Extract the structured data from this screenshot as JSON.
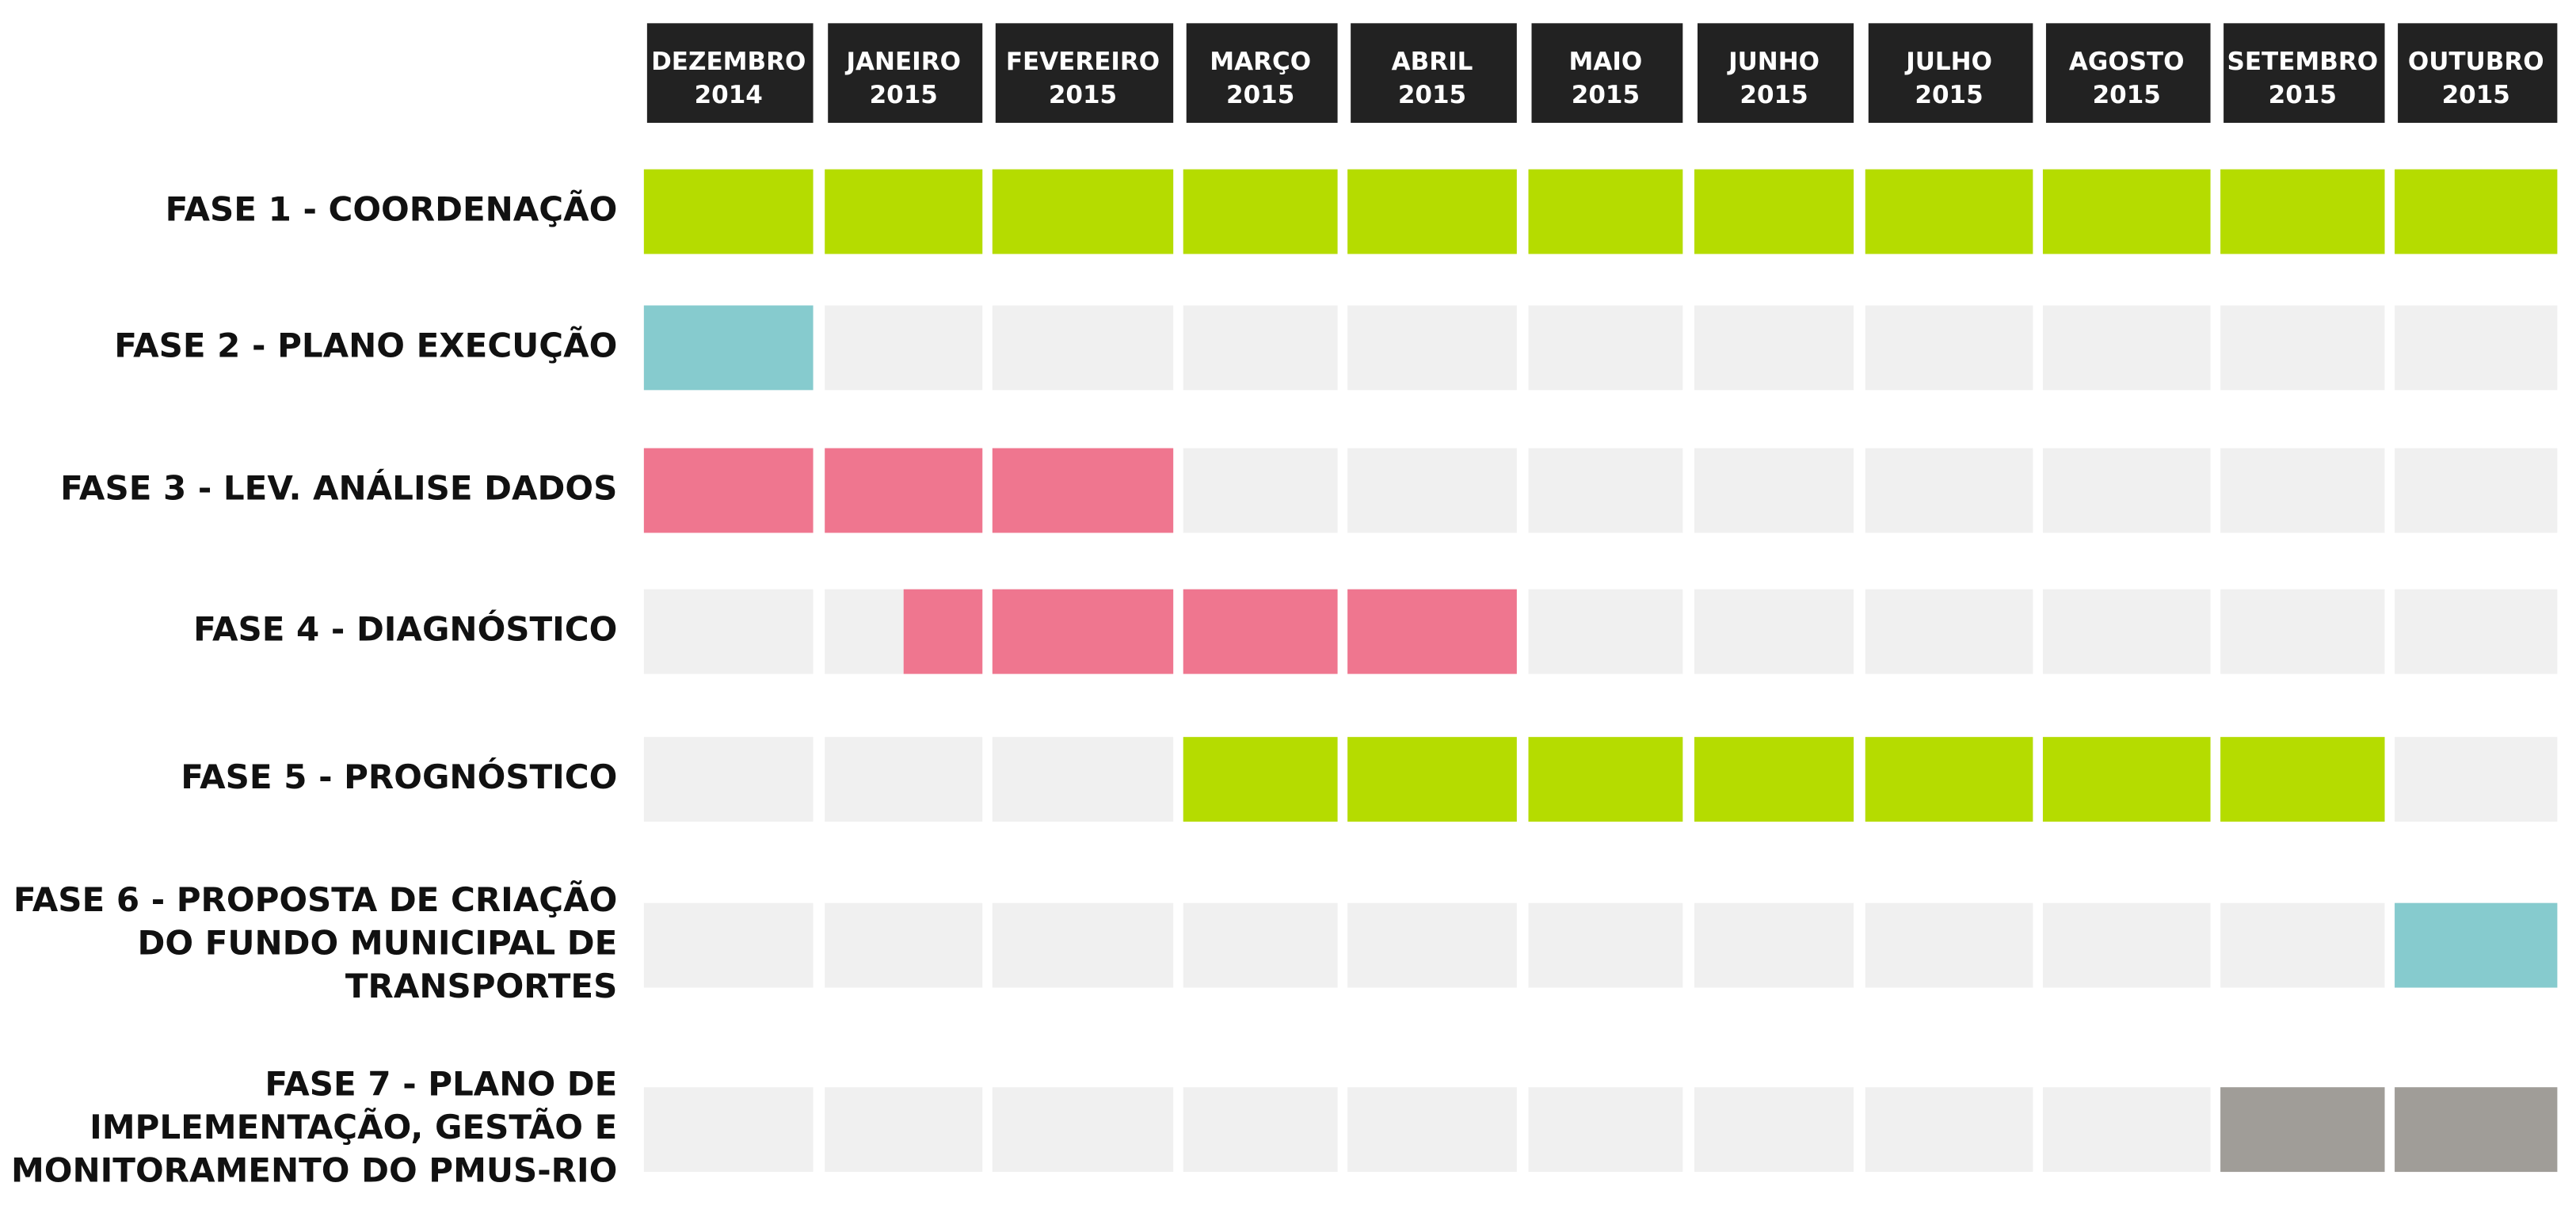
{
  "months": [
    {
      "name": "DEZEMBRO",
      "year": "2014"
    },
    {
      "name": "JANEIRO",
      "year": "2015"
    },
    {
      "name": "FEVEREIRO",
      "year": "2015"
    },
    {
      "name": "MARÇO",
      "year": "2015"
    },
    {
      "name": "ABRIL",
      "year": "2015"
    },
    {
      "name": "MAIO",
      "year": "2015"
    },
    {
      "name": "JUNHO",
      "year": "2015"
    },
    {
      "name": "JULHO",
      "year": "2015"
    },
    {
      "name": "AGOSTO",
      "year": "2015"
    },
    {
      "name": "SETEMBRO",
      "year": "2015"
    },
    {
      "name": "OUTUBRO",
      "year": "2015"
    }
  ],
  "phases": [
    {
      "label": [
        "FASE 1 - COORDENAÇÃO"
      ],
      "start": 0,
      "end": 11,
      "color": "#b5dc00"
    },
    {
      "label": [
        "FASE 2 - PLANO EXECUÇÃO"
      ],
      "start": 0,
      "end": 1,
      "color": "#86cbce"
    },
    {
      "label": [
        "FASE 3 - LEV. ANÁLISE DADOS"
      ],
      "start": 0,
      "end": 3,
      "color": "#ef768f"
    },
    {
      "label": [
        "FASE 4 - DIAGNÓSTICO"
      ],
      "start": 1.5,
      "end": 5,
      "color": "#ef768f"
    },
    {
      "label": [
        "FASE 5 - PROGNÓSTICO"
      ],
      "start": 3,
      "end": 10,
      "color": "#b5dc00"
    },
    {
      "label": [
        "FASE 6 - PROPOSTA DE CRIAÇÃO",
        "DO FUNDO MUNICIPAL DE",
        "TRANSPORTES"
      ],
      "start": 10,
      "end": 11,
      "color": "#86cbce"
    },
    {
      "label": [
        "FASE 7 - PLANO DE",
        "IMPLEMENTAÇÃO, GESTÃO E",
        "MONITORAMENTO DO PMUS-RIO"
      ],
      "start": 9,
      "end": 11,
      "color": "#a09d98"
    }
  ]
}
